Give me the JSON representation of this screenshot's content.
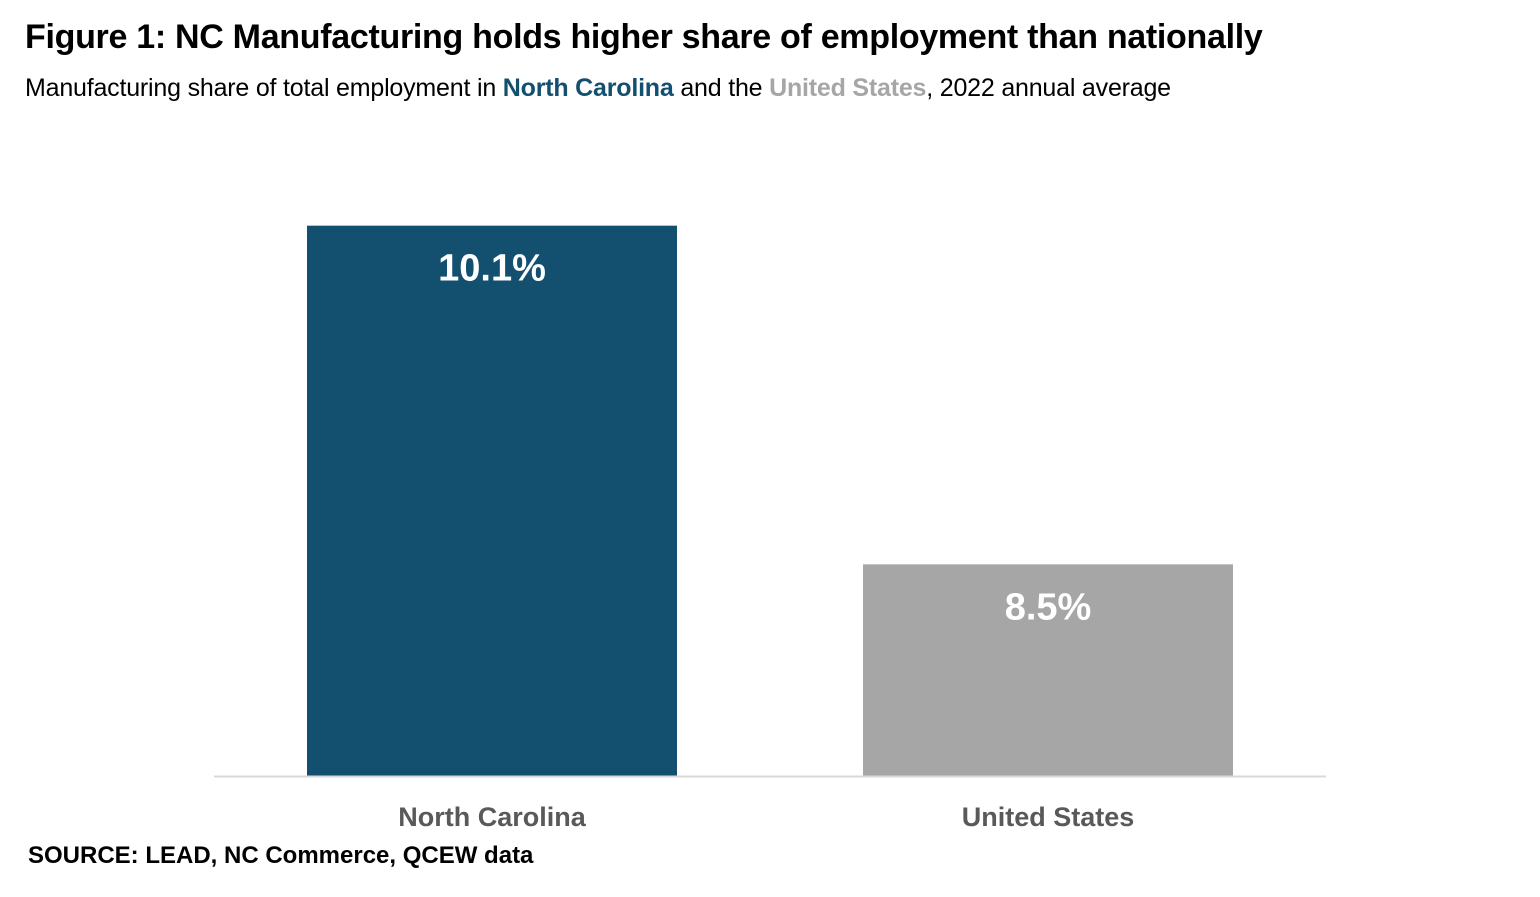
{
  "title": "Figure 1: NC Manufacturing holds higher share of employment than nationally",
  "subtitle": {
    "part1": "Manufacturing share of total employment in ",
    "nc": "North Carolina",
    "part2": " and the ",
    "us": "United States",
    "part3": ", 2022 annual average"
  },
  "source": "SOURCE: LEAD, NC Commerce, QCEW data",
  "chart_data": {
    "type": "bar",
    "categories": [
      "North Carolina",
      "United States"
    ],
    "values": [
      10.1,
      8.5
    ],
    "data_labels": [
      "10.1%",
      "8.5%"
    ],
    "colors": [
      "#134f6f",
      "#a6a6a6"
    ],
    "ylim": [
      7.5,
      10.5
    ],
    "grid": false,
    "legend": "none",
    "xlabel": "",
    "ylabel": ""
  }
}
